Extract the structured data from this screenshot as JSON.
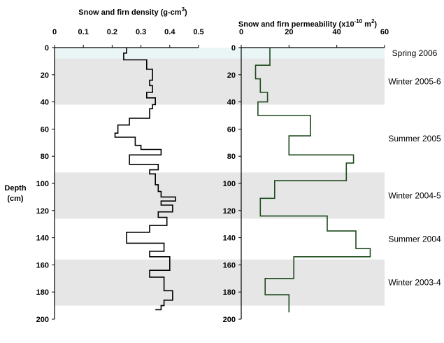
{
  "chart_data": {
    "type": "line",
    "depth_axis": {
      "label_line1": "Depth",
      "label_line2": "(cm)",
      "range": [
        0,
        200
      ],
      "ticks": [
        "0",
        "20",
        "40",
        "60",
        "80",
        "100",
        "120",
        "140",
        "160",
        "180",
        "200"
      ]
    },
    "density_panel": {
      "title": "Snow and firn density (g-cm",
      "title_sup": "3",
      "title_end": ")",
      "range": [
        0,
        0.5
      ],
      "ticks": [
        "0",
        "0.1",
        "0.2",
        "0.3",
        "0.4",
        "0.5"
      ],
      "color": "#000000",
      "series": {
        "x": [
          0.25,
          0.25,
          0.24,
          0.24,
          0.32,
          0.32,
          0.34,
          0.34,
          0.33,
          0.33,
          0.34,
          0.34,
          0.32,
          0.32,
          0.35,
          0.35,
          0.34,
          0.34,
          0.33,
          0.33,
          0.26,
          0.26,
          0.22,
          0.22,
          0.21,
          0.21,
          0.28,
          0.28,
          0.3,
          0.3,
          0.37,
          0.37,
          0.26,
          0.26,
          0.36,
          0.36,
          0.33,
          0.33,
          0.35,
          0.35,
          0.35,
          0.35,
          0.36,
          0.36,
          0.37,
          0.37,
          0.42,
          0.42,
          0.37,
          0.37,
          0.41,
          0.41,
          0.36,
          0.36,
          0.39,
          0.39,
          0.33,
          0.33,
          0.25,
          0.25,
          0.38,
          0.38,
          0.33,
          0.33,
          0.4,
          0.4,
          0.33,
          0.33,
          0.38,
          0.38,
          0.41,
          0.41,
          0.38,
          0.38,
          0.37,
          0.37,
          0.35
        ],
        "depth": [
          0,
          4,
          4,
          9,
          9,
          16,
          16,
          24,
          24,
          28,
          28,
          33,
          33,
          37,
          37,
          42,
          42,
          45,
          45,
          52,
          52,
          57,
          57,
          63,
          63,
          66,
          66,
          72,
          72,
          75,
          75,
          79,
          79,
          86,
          86,
          90,
          90,
          93,
          93,
          97,
          97,
          101,
          101,
          106,
          106,
          110,
          110,
          113,
          113,
          116,
          116,
          121,
          121,
          125,
          125,
          131,
          131,
          136,
          136,
          144,
          144,
          150,
          150,
          154,
          154,
          164,
          164,
          169,
          169,
          179,
          179,
          186,
          186,
          190,
          190,
          193,
          193
        ]
      }
    },
    "permeability_panel": {
      "title": "Snow and firn permeability (x10",
      "title_sup": "-10",
      "title_mid": " m",
      "title_sup2": "2",
      "title_end": ")",
      "range": [
        0,
        60
      ],
      "ticks": [
        "0",
        "20",
        "40",
        "60"
      ],
      "color": "#1e4a1e",
      "series": {
        "x": [
          12,
          12,
          6,
          6,
          8,
          8,
          11,
          11,
          7,
          7,
          29,
          29,
          20,
          20,
          47,
          47,
          44,
          44,
          14,
          14,
          8,
          8,
          36,
          36,
          48,
          48,
          54,
          54,
          22,
          22,
          10,
          10,
          20,
          20
        ],
        "depth": [
          0,
          13,
          13,
          23,
          23,
          33,
          33,
          40,
          40,
          50,
          50,
          65,
          65,
          79,
          79,
          85,
          85,
          98,
          98,
          111,
          111,
          124,
          124,
          135,
          135,
          148,
          148,
          154,
          154,
          170,
          170,
          182,
          182,
          195
        ]
      }
    },
    "bands": [
      {
        "label": "Spring 2006",
        "top": 0,
        "bottom": 8,
        "fill": "#eaf6f6"
      },
      {
        "label": "Winter 2005-6",
        "top": 8,
        "bottom": 42,
        "fill": "#e6e6e6"
      },
      {
        "label": "Summer 2005",
        "top": 42,
        "bottom": 92,
        "fill": "#ffffff"
      },
      {
        "label": "Winter 2004-5",
        "top": 92,
        "bottom": 126,
        "fill": "#e6e6e6"
      },
      {
        "label": "Summer 2004",
        "top": 126,
        "bottom": 156,
        "fill": "#ffffff"
      },
      {
        "label": "Winter 2003-4",
        "top": 156,
        "bottom": 190,
        "fill": "#e6e6e6"
      }
    ]
  }
}
